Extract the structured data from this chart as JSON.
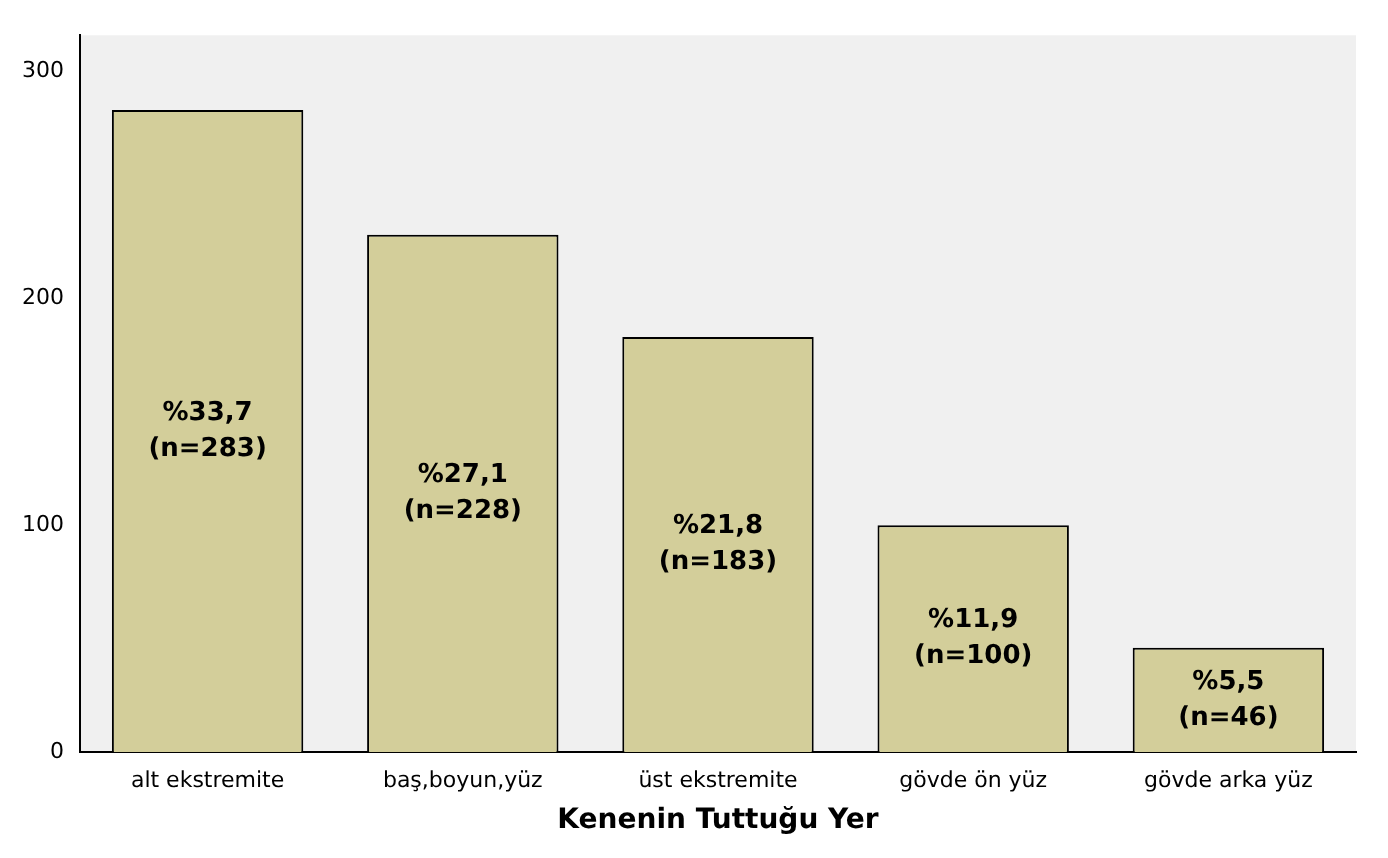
{
  "chart_data": {
    "type": "bar",
    "xlabel": "Kenenin Tuttuğu Yer",
    "categories": [
      "alt ekstremite",
      "baş,boyun,yüz",
      "üst ekstremite",
      "gövde ön yüz",
      "gövde arka yüz"
    ],
    "values": [
      283,
      228,
      183,
      100,
      46
    ],
    "value_labels": [
      "%33,7\n(n=283)",
      "%27,1\n(n=228)",
      "%21,8\n(n=183)",
      "%11,9\n(n=100)",
      "%5,5\n(n=46)"
    ],
    "color": "#d3ce9a",
    "ylim": [
      0,
      316
    ],
    "yticks": [
      0,
      100,
      200,
      300
    ],
    "grid": false,
    "legend": false
  }
}
